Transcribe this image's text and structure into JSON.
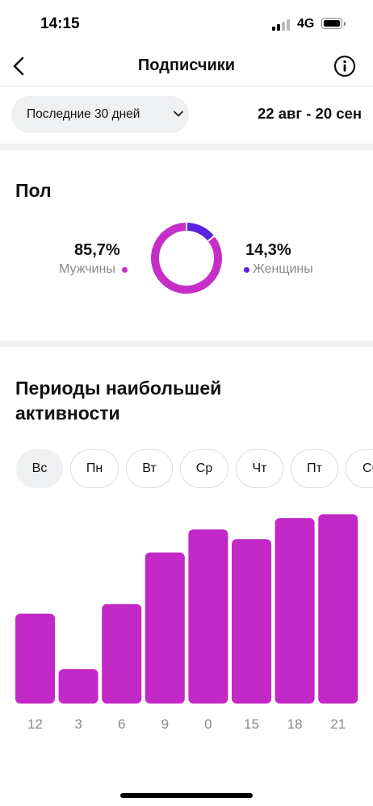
{
  "status_bar": {
    "time": "14:15",
    "network": "4G"
  },
  "header": {
    "title": "Подписчики",
    "back_icon": "chevron-left-icon",
    "info_icon": "info-icon"
  },
  "filter": {
    "range_label": "Последние 30 дней",
    "dates": "22 авг - 20 сен"
  },
  "gender": {
    "heading": "Пол",
    "male": {
      "percent": "85,7%",
      "label": "Мужчины",
      "fraction": 0.857,
      "color": "#c52fc7"
    },
    "female": {
      "percent": "14,3%",
      "label": "Женщины",
      "fraction": 0.143,
      "color": "#5b22e0"
    }
  },
  "activity": {
    "heading_line1": "Периоды наибольшей",
    "heading_line2": "активности",
    "days": [
      {
        "label": "Вс",
        "active": true
      },
      {
        "label": "Пн",
        "active": false
      },
      {
        "label": "Вт",
        "active": false
      },
      {
        "label": "Ср",
        "active": false
      },
      {
        "label": "Чт",
        "active": false
      },
      {
        "label": "Пт",
        "active": false
      },
      {
        "label": "Сб",
        "active": false
      }
    ]
  },
  "chart_data": {
    "type": "bar",
    "categories": [
      "12",
      "3",
      "6",
      "9",
      "0",
      "15",
      "18",
      "21"
    ],
    "values": [
      47,
      18,
      52,
      79,
      91,
      86,
      97,
      99
    ],
    "ylim": [
      0,
      100
    ],
    "bar_color": "#c228c6",
    "grid": false
  }
}
